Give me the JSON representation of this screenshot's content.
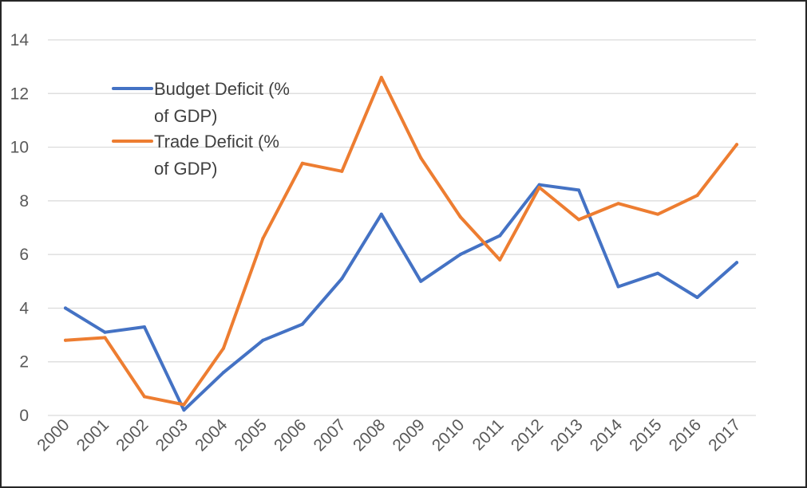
{
  "chart_data": {
    "type": "line",
    "title": "",
    "xlabel": "",
    "ylabel": "",
    "ylim": [
      0,
      14
    ],
    "yticks": [
      0,
      2,
      4,
      6,
      8,
      10,
      12,
      14
    ],
    "grid": true,
    "legend_position": "top-left",
    "categories": [
      "2000",
      "2001",
      "2002",
      "2003",
      "2004",
      "2005",
      "2006",
      "2007",
      "2008",
      "2009",
      "2010",
      "2011",
      "2012",
      "2013",
      "2014",
      "2015",
      "2016",
      "2017"
    ],
    "series": [
      {
        "name": "Budget Deficit (% of GDP)",
        "legend_lines": [
          "Budget Deficit (%",
          "of GDP)"
        ],
        "color": "#4472c4",
        "values": [
          4.0,
          3.1,
          3.3,
          0.2,
          1.6,
          2.8,
          3.4,
          5.1,
          7.5,
          5.0,
          6.0,
          6.7,
          8.6,
          8.4,
          4.8,
          5.3,
          4.4,
          5.7
        ]
      },
      {
        "name": "Trade Deficit (% of GDP)",
        "legend_lines": [
          "Trade Deficit (%",
          "of GDP)"
        ],
        "color": "#ed7d31",
        "values": [
          2.8,
          2.9,
          0.7,
          0.4,
          2.5,
          6.6,
          9.4,
          9.1,
          12.6,
          9.6,
          7.4,
          5.8,
          8.5,
          7.3,
          7.9,
          7.5,
          8.2,
          10.1
        ]
      }
    ]
  }
}
